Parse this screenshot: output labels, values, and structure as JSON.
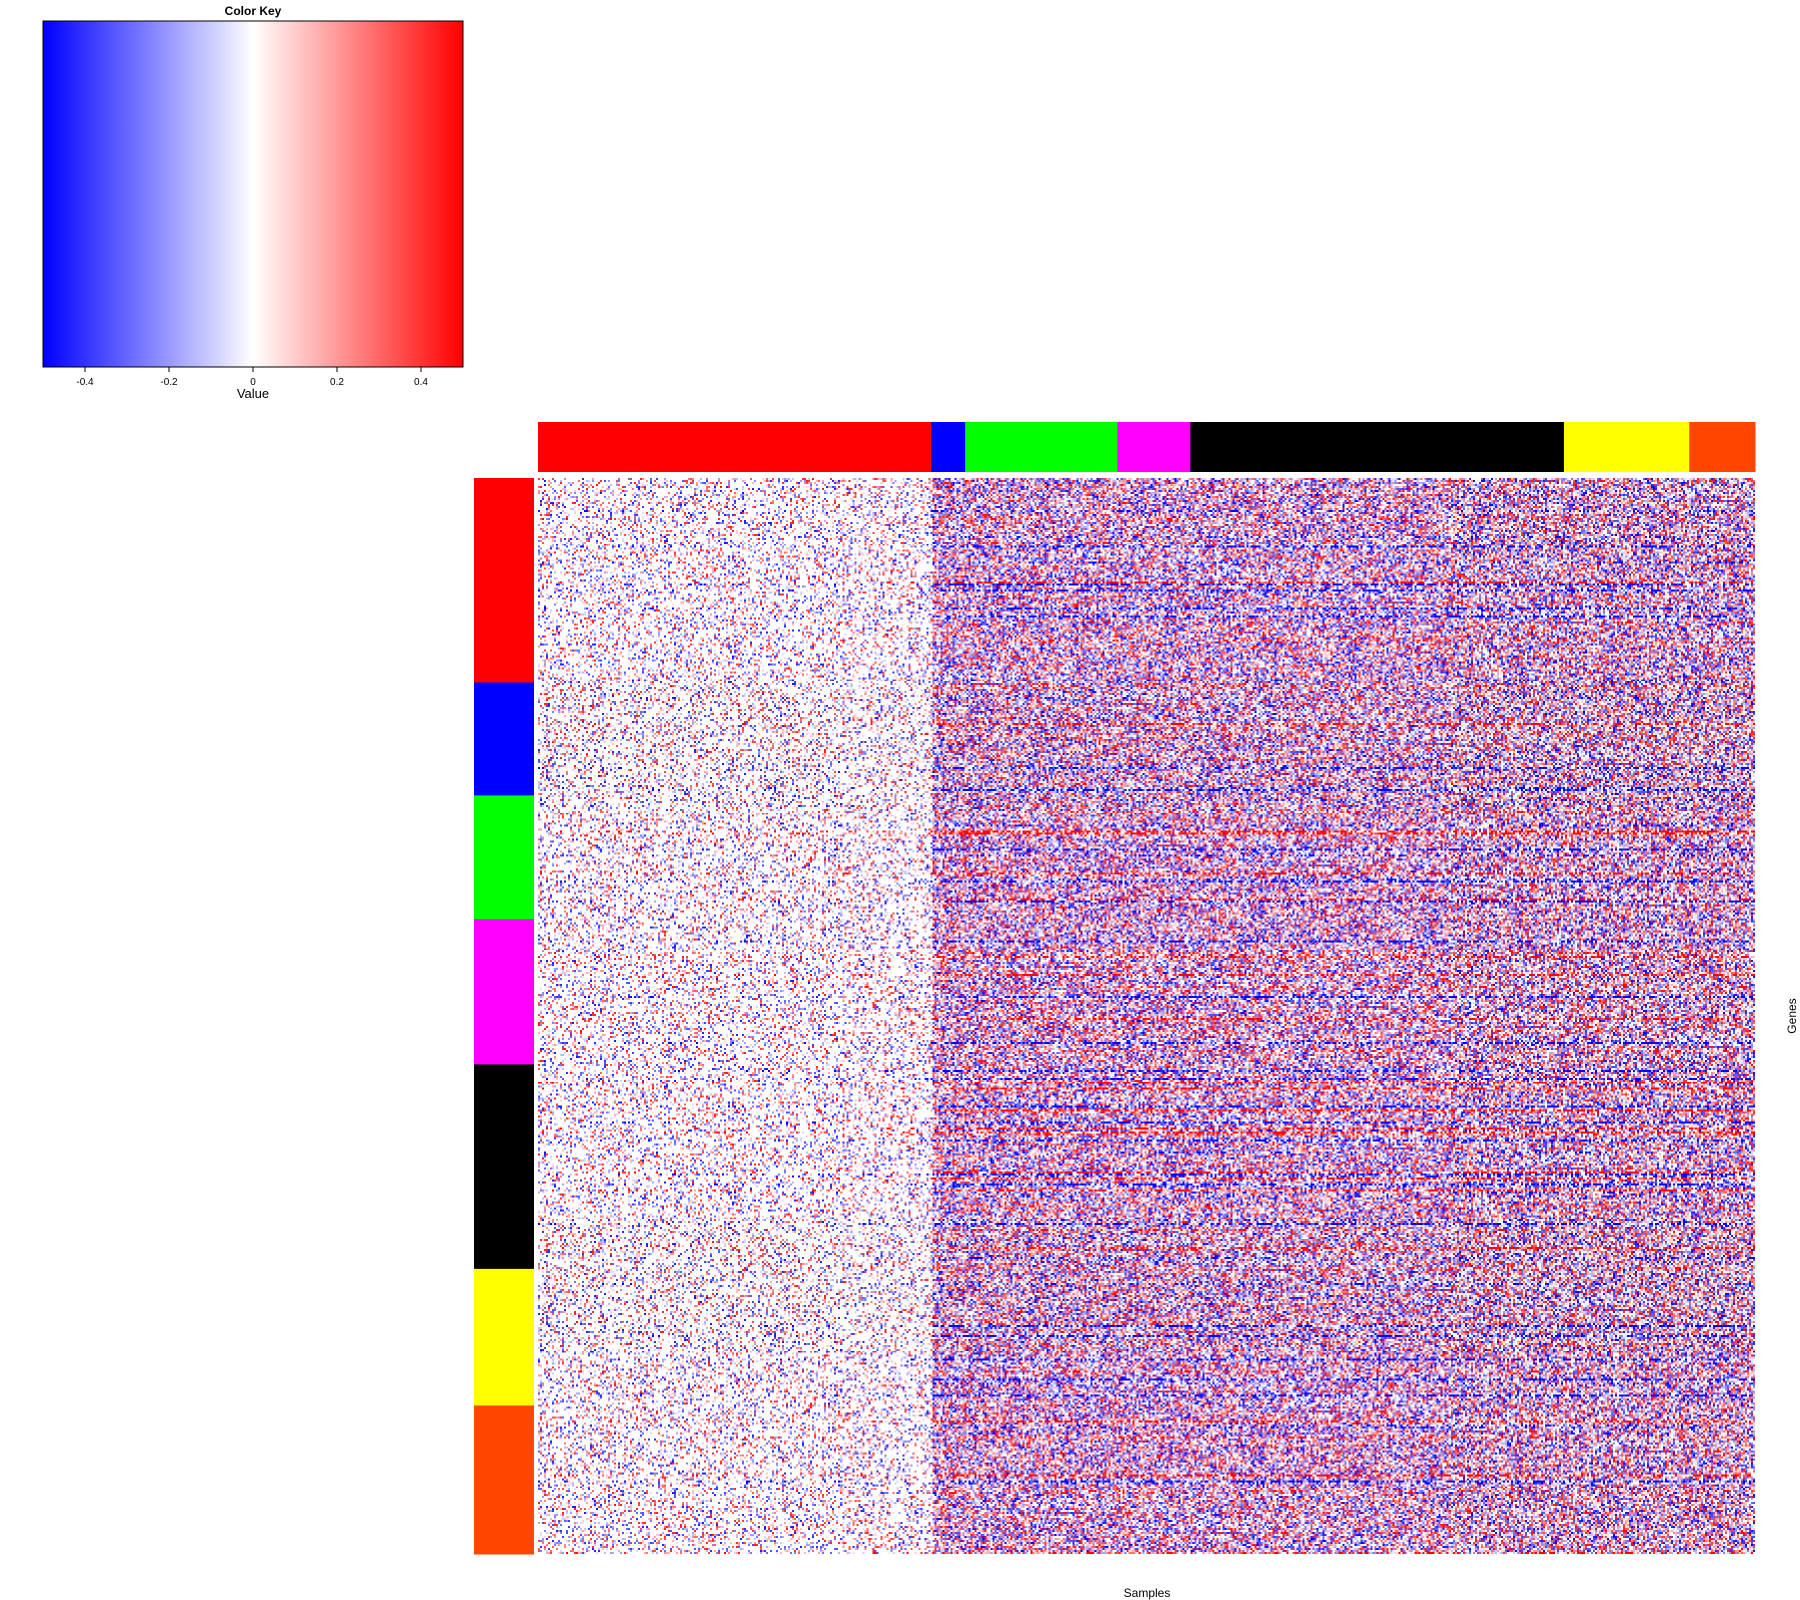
{
  "chart_data": {
    "type": "heatmap",
    "color_key": {
      "title": "Color Key",
      "xlabel": "Value",
      "range": [
        -0.5,
        0.5
      ],
      "ticks": [
        -0.4,
        -0.2,
        0,
        0.2,
        0.4
      ],
      "tick_labels": [
        "-0.4",
        "-0.2",
        "0",
        "0.2",
        "0.4"
      ],
      "colors": {
        "low": "#0000ff",
        "mid": "#ffffff",
        "high": "#ff0000"
      }
    },
    "xlabel": "Samples",
    "ylabel": "Genes",
    "column_groups": [
      {
        "color": "#ff0000",
        "fraction": 0.323
      },
      {
        "color": "#0000ff",
        "fraction": 0.028
      },
      {
        "color": "#00ff00",
        "fraction": 0.125
      },
      {
        "color": "#ff00ff",
        "fraction": 0.06
      },
      {
        "color": "#000000",
        "fraction": 0.307
      },
      {
        "color": "#ffff00",
        "fraction": 0.103
      },
      {
        "color": "#ff4500",
        "fraction": 0.054
      }
    ],
    "row_groups": [
      {
        "color": "#ff0000",
        "fraction": 0.19
      },
      {
        "color": "#0000ff",
        "fraction": 0.105
      },
      {
        "color": "#00ff00",
        "fraction": 0.115
      },
      {
        "color": "#ff00ff",
        "fraction": 0.135
      },
      {
        "color": "#000000",
        "fraction": 0.19
      },
      {
        "color": "#ffff00",
        "fraction": 0.127
      },
      {
        "color": "#ff4500",
        "fraction": 0.138
      }
    ]
  }
}
